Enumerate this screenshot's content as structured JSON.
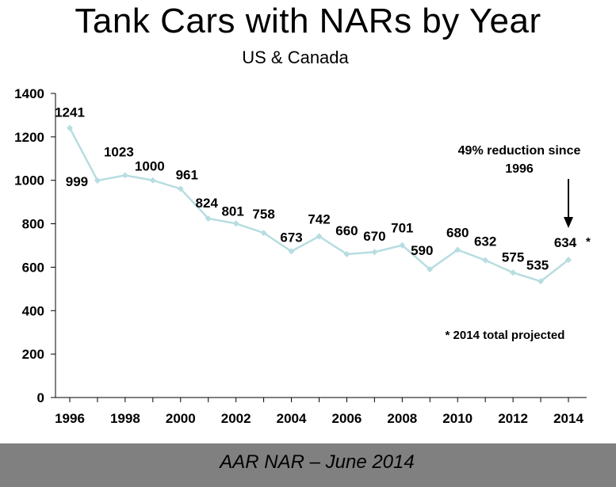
{
  "chart_data": {
    "type": "line",
    "title": "Tank Cars with NARs by Year",
    "subtitle": "US & Canada",
    "x": [
      1996,
      1997,
      1998,
      1999,
      2000,
      2001,
      2002,
      2003,
      2004,
      2005,
      2006,
      2007,
      2008,
      2009,
      2010,
      2011,
      2012,
      2013,
      2014
    ],
    "series": [
      {
        "name": "Tank Cars with NARs",
        "color": "#b7dde1",
        "values": [
          1241,
          999,
          1023,
          1000,
          961,
          824,
          801,
          758,
          673,
          742,
          660,
          670,
          701,
          590,
          680,
          632,
          575,
          535,
          634
        ]
      }
    ],
    "data_labels": [
      "1241",
      "999",
      "1023",
      "1000",
      "961",
      "824",
      "801",
      "758",
      "673",
      "742",
      "660",
      "670",
      "701",
      "590",
      "680",
      "632",
      "575",
      "535",
      "634"
    ],
    "x_ticks": [
      "1996",
      "1998",
      "2000",
      "2002",
      "2004",
      "2006",
      "2008",
      "2010",
      "2012",
      "2014"
    ],
    "y_ticks": [
      "0",
      "200",
      "400",
      "600",
      "800",
      "1000",
      "1200",
      "1400"
    ],
    "ylim": [
      0,
      1400
    ],
    "xlim": [
      1996,
      2014
    ],
    "projected_marker": "*",
    "annotation": {
      "line1": "49% reduction since",
      "line2": "1996",
      "target_year": 2014
    },
    "footnote": "* 2014 total projected"
  },
  "footer": {
    "caption": "AAR NAR – June 2014"
  }
}
